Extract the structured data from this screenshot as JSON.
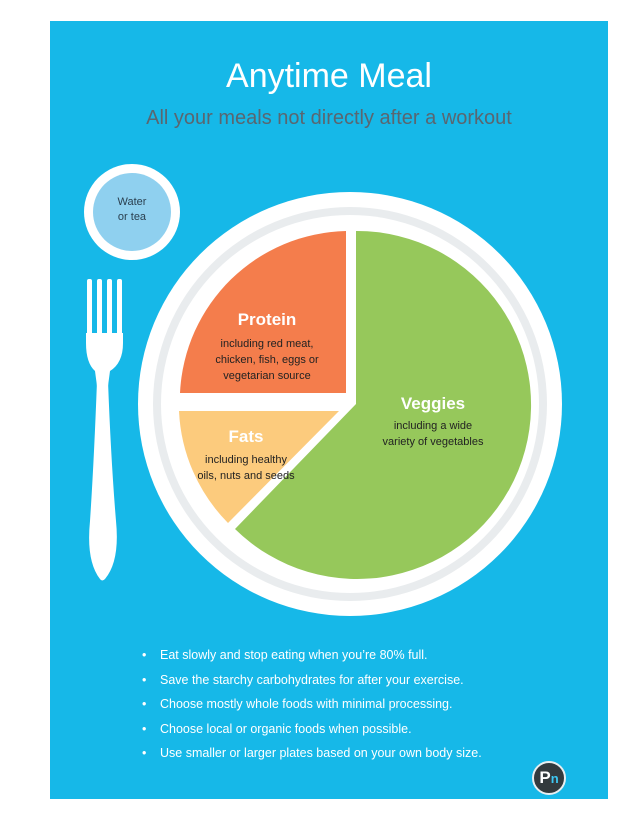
{
  "poster": {
    "title": "Anytime Meal",
    "subtitle": "All your meals not directly after a workout"
  },
  "drink": {
    "line1": "Water",
    "line2": "or tea"
  },
  "plate": {
    "protein": {
      "title": "Protein",
      "lines": [
        "including red meat,",
        "chicken, fish, eggs or",
        "vegetarian source"
      ],
      "color": "#f47d4c"
    },
    "fats": {
      "title": "Fats",
      "lines": [
        "including healthy",
        "oils, nuts and seeds"
      ],
      "color": "#fccb7d"
    },
    "veggies": {
      "title": "Veggies",
      "lines": [
        "including a wide",
        "variety of vegetables"
      ],
      "color": "#96c85b"
    }
  },
  "tips": [
    "Eat slowly and stop eating when you’re 80% full.",
    "Save the starchy carbohydrates for after your exercise.",
    "Choose mostly whole foods with minimal processing.",
    "Choose local or organic foods when possible.",
    "Use smaller or larger plates based on your own body size."
  ],
  "logo": {
    "letter": "P",
    "sub": "n"
  },
  "colors": {
    "background": "#16b8e8",
    "plate": "#ffffff",
    "drink": "#8fd0ef",
    "subtitle": "#5a6670"
  }
}
